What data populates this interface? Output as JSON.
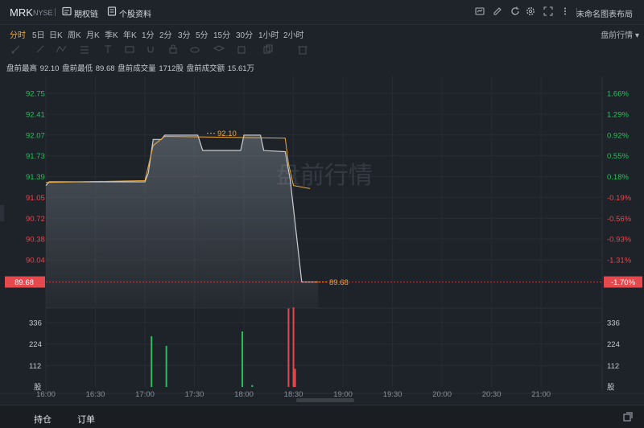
{
  "header": {
    "ticker": "MRK",
    "exchange": "NYSE",
    "options_chain_label": "期权链",
    "stock_info_label": "个股资料",
    "layout_name": "未命名图表布局",
    "icons": [
      "chart-template-icon",
      "draw-icon",
      "refresh-icon",
      "settings-icon",
      "fullscreen-icon",
      "more-icon"
    ]
  },
  "timeframes": {
    "items": [
      "分时",
      "5日",
      "日K",
      "周K",
      "月K",
      "季K",
      "年K",
      "1分",
      "2分",
      "3分",
      "5分",
      "15分",
      "30分",
      "1小时",
      "2小时"
    ],
    "active": "分时",
    "session_label": "盘前行情"
  },
  "stats": {
    "high_label": "盘前最高",
    "high": "92.10",
    "low_label": "盘前最低",
    "low": "89.68",
    "volume_label": "盘前成交量",
    "volume": "1712股",
    "turnover_label": "盘前成交额",
    "turnover": "15.61万"
  },
  "chart_data": {
    "type": "line",
    "watermark": "盘前行情",
    "y_price_ticks": [
      "92.75",
      "92.41",
      "92.07",
      "91.73",
      "91.39",
      "91.05",
      "90.72",
      "90.38",
      "90.04"
    ],
    "y_pct_ticks": [
      "1.66%",
      "1.29%",
      "0.92%",
      "0.55%",
      "0.18%",
      "-0.19%",
      "-0.56%",
      "-0.93%",
      "-1.31%"
    ],
    "current_price": "89.68",
    "current_pct": "-1.70%",
    "high_marker": "92.10",
    "low_marker": "89.68",
    "volume_ticks": [
      "336",
      "224",
      "112"
    ],
    "volume_unit": "股",
    "x_ticks": [
      "16:00",
      "16:30",
      "17:00",
      "17:30",
      "18:00",
      "18:30",
      "19:00",
      "19:30",
      "20:00",
      "20:30",
      "21:00"
    ],
    "price_series": [
      [
        "16:00",
        91.25
      ],
      [
        "16:02",
        91.31
      ],
      [
        "16:05",
        91.31
      ],
      [
        "16:30",
        91.31
      ],
      [
        "17:00",
        91.31
      ],
      [
        "17:02",
        91.45
      ],
      [
        "17:05",
        92.0
      ],
      [
        "17:10",
        92.0
      ],
      [
        "17:12",
        92.07
      ],
      [
        "17:20",
        92.07
      ],
      [
        "17:32",
        92.07
      ],
      [
        "17:35",
        91.82
      ],
      [
        "17:50",
        91.82
      ],
      [
        "17:58",
        91.82
      ],
      [
        "18:00",
        92.07
      ],
      [
        "18:10",
        92.07
      ],
      [
        "18:12",
        91.82
      ],
      [
        "18:25",
        91.8
      ],
      [
        "18:28",
        91.35
      ],
      [
        "18:32",
        90.4
      ],
      [
        "18:35",
        89.68
      ],
      [
        "18:45",
        89.68
      ]
    ],
    "avg_series": [
      [
        "16:00",
        91.3
      ],
      [
        "17:00",
        91.33
      ],
      [
        "17:05",
        91.9
      ],
      [
        "17:12",
        92.05
      ],
      [
        "18:25",
        92.02
      ],
      [
        "18:27",
        91.6
      ],
      [
        "18:30",
        91.25
      ],
      [
        "18:40",
        91.2
      ]
    ],
    "volume_bars": [
      {
        "time": "17:04",
        "volume": 265,
        "color": "green"
      },
      {
        "time": "17:13",
        "volume": 215,
        "color": "green"
      },
      {
        "time": "17:59",
        "volume": 290,
        "color": "green"
      },
      {
        "time": "18:05",
        "volume": 10,
        "color": "green"
      },
      {
        "time": "18:27",
        "volume": 410,
        "color": "red"
      },
      {
        "time": "18:30",
        "volume": 415,
        "color": "red"
      },
      {
        "time": "18:31",
        "volume": 95,
        "color": "red"
      }
    ]
  },
  "bottom_tabs": [
    "持仓",
    "订单"
  ],
  "colors": {
    "up": "#2cbd5c",
    "down": "#e5484d",
    "accent": "#f0a93a",
    "line": "#c9ced6"
  }
}
